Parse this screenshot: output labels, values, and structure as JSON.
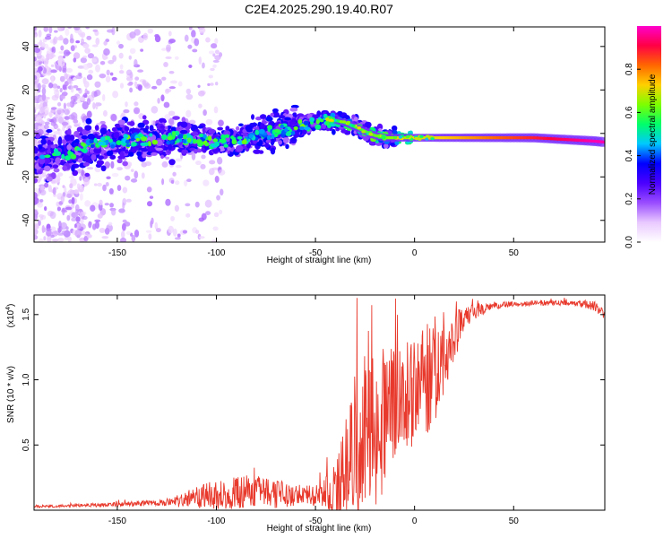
{
  "title": "C2E4.2025.290.19.40.R07",
  "chart_data": [
    {
      "type": "heatmap",
      "name": "spectrogram",
      "xlabel": "Height of straight line (km)",
      "ylabel": "Frequency (Hz)",
      "xlim": [
        -192,
        96
      ],
      "ylim": [
        -50,
        49
      ],
      "xticks": [
        -150,
        -100,
        -50,
        0,
        50
      ],
      "yticks": [
        -40,
        -20,
        0,
        20,
        40
      ],
      "ridge": {
        "heights": [
          -192,
          -180,
          -170,
          -160,
          -150,
          -140,
          -130,
          -120,
          -110,
          -100,
          -90,
          -80,
          -70,
          -60,
          -50,
          -45,
          -40,
          -35,
          -30,
          -25,
          -20,
          -15,
          -10,
          -5,
          0,
          10,
          20,
          30,
          40,
          50,
          60,
          70,
          80,
          90,
          96
        ],
        "frequencies": [
          -11,
          -10,
          -8,
          -5,
          -4,
          -3,
          -3,
          -2,
          -3,
          -4,
          -3,
          -1,
          1,
          3,
          5,
          6,
          6,
          5,
          3,
          1,
          -1,
          -2,
          -2,
          -2,
          -2,
          -2,
          -2,
          -2,
          -2,
          -2,
          -2,
          -2.5,
          -3,
          -3.5,
          -4
        ]
      },
      "colorbar": {
        "label": "Normalized spectral amplitude",
        "range": [
          0.0,
          1.0
        ],
        "ticks": [
          0.0,
          0.2,
          0.4,
          0.6,
          0.8
        ],
        "tick_labels": [
          "0.0",
          "0.2",
          "0.4",
          "0.6",
          "0.8"
        ],
        "colors": [
          "#ffffff",
          "#e9c9ff",
          "#9a4dff",
          "#4b00ff",
          "#0000ff",
          "#00c8ff",
          "#00ff6a",
          "#7dff00",
          "#ffd000",
          "#ff6600",
          "#ff0044",
          "#ff00cc"
        ]
      }
    },
    {
      "type": "line",
      "name": "snr",
      "xlabel": "Height of straight line (km)",
      "ylabel": "SNR (10 * v/v)",
      "yscale_note": "(x10",
      "yscale_exp": "4",
      "xlim": [
        -192,
        96
      ],
      "ylim": [
        0,
        1.65
      ],
      "xticks": [
        -150,
        -100,
        -50,
        0,
        50
      ],
      "yticks": [
        0.5,
        1.0,
        1.5
      ],
      "ytick_labels": [
        "0.5",
        "1.0",
        "1.5"
      ],
      "color": "#e8392c",
      "envelope": {
        "heights": [
          -192,
          -180,
          -160,
          -140,
          -125,
          -115,
          -105,
          -95,
          -85,
          -75,
          -65,
          -55,
          -50,
          -45,
          -40,
          -35,
          -30,
          -25,
          -20,
          -15,
          -10,
          -5,
          0,
          5,
          10,
          15,
          20,
          25,
          30,
          40,
          50,
          60,
          70,
          80,
          85,
          90,
          94,
          96
        ],
        "base": [
          0.03,
          0.03,
          0.04,
          0.05,
          0.06,
          0.08,
          0.11,
          0.13,
          0.14,
          0.13,
          0.12,
          0.11,
          0.11,
          0.13,
          0.15,
          0.3,
          0.45,
          0.55,
          0.6,
          0.7,
          0.8,
          0.85,
          0.9,
          0.95,
          1.05,
          1.2,
          1.35,
          1.45,
          1.52,
          1.57,
          1.58,
          1.59,
          1.59,
          1.59,
          1.58,
          1.57,
          1.52,
          1.48
        ],
        "spread": [
          0.01,
          0.01,
          0.015,
          0.02,
          0.03,
          0.06,
          0.1,
          0.12,
          0.14,
          0.12,
          0.1,
          0.08,
          0.08,
          0.12,
          0.2,
          0.4,
          0.6,
          0.65,
          0.6,
          0.55,
          0.5,
          0.45,
          0.4,
          0.45,
          0.45,
          0.3,
          0.2,
          0.1,
          0.06,
          0.03,
          0.02,
          0.02,
          0.02,
          0.02,
          0.03,
          0.04,
          0.05,
          0.05
        ]
      }
    }
  ]
}
